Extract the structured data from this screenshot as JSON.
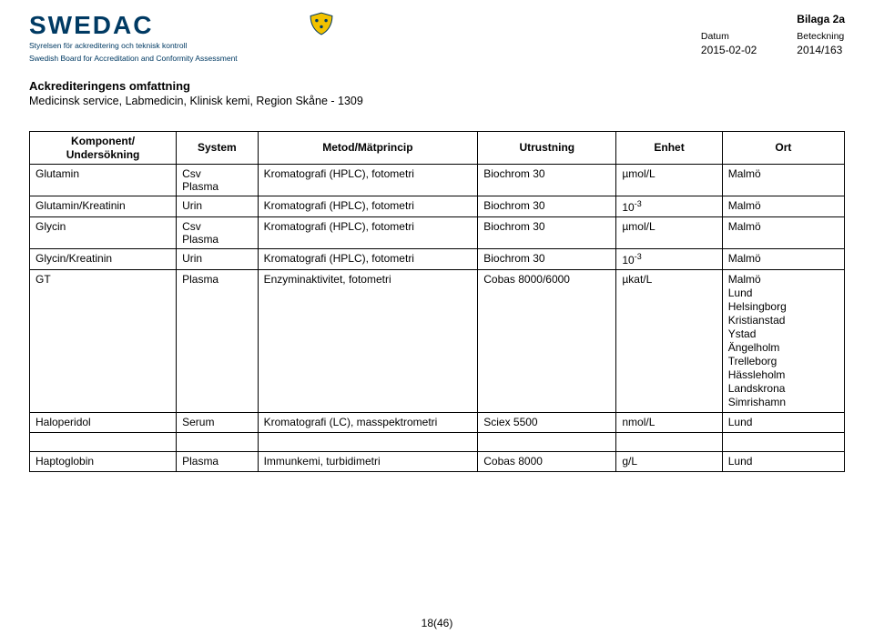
{
  "attachment_label": "Bilaga 2a",
  "logo": {
    "name": "SWEDAC",
    "sub1": "Styrelsen för ackreditering och teknisk kontroll",
    "sub2": "Swedish Board for Accreditation and Conformity Assessment"
  },
  "meta": {
    "datum_label": "Datum",
    "datum_value": "2015-02-02",
    "beteckning_label": "Beteckning",
    "beteckning_value": "2014/163"
  },
  "heading": "Ackrediteringens omfattning",
  "subheading": "Medicinsk service, Labmedicin, Klinisk kemi, Region Skåne - 1309",
  "columns": {
    "komponent": "Komponent/\nUndersökning",
    "system": "System",
    "metod": "Metod/Mätprincip",
    "utrustning": "Utrustning",
    "enhet": "Enhet",
    "ort": "Ort"
  },
  "rows": [
    {
      "komp": "Glutamin",
      "sys": "Csv\nPlasma",
      "met": "Kromatografi (HPLC), fotometri",
      "utr": "Biochrom 30",
      "enh": "µmol/L",
      "ort": "Malmö"
    },
    {
      "komp": "Glutamin/Kreatinin",
      "sys": "Urin",
      "met": "Kromatografi (HPLC), fotometri",
      "utr": "Biochrom 30",
      "enh_html": "10<sup>-3</sup>",
      "ort": "Malmö"
    },
    {
      "komp": "Glycin",
      "sys": "Csv\nPlasma",
      "met": "Kromatografi (HPLC), fotometri",
      "utr": "Biochrom 30",
      "enh": "µmol/L",
      "ort": "Malmö"
    },
    {
      "komp": "Glycin/Kreatinin",
      "sys": "Urin",
      "met": "Kromatografi (HPLC), fotometri",
      "utr": "Biochrom 30",
      "enh_html": "10<sup>-3</sup>",
      "ort": "Malmö"
    },
    {
      "komp": "GT",
      "sys": "Plasma",
      "met": "Enzyminaktivitet, fotometri",
      "utr": "Cobas 8000/6000",
      "enh": "µkat/L",
      "ort": "Malmö\nLund\nHelsingborg\nKristianstad\nYstad\nÄngelholm\nTrelleborg\nHässleholm\nLandskrona\nSimrishamn"
    },
    {
      "komp": "Haloperidol",
      "sys": "Serum",
      "met": "Kromatografi (LC), masspektrometri",
      "utr": "Sciex 5500",
      "enh": "nmol/L",
      "ort": "Lund"
    },
    {
      "spacer": true
    },
    {
      "komp": "Haptoglobin",
      "sys": "Plasma",
      "met": "Immunkemi, turbidimetri",
      "utr": "Cobas 8000",
      "enh": "g/L",
      "ort": "Lund"
    }
  ],
  "footer_page": "18(46)"
}
